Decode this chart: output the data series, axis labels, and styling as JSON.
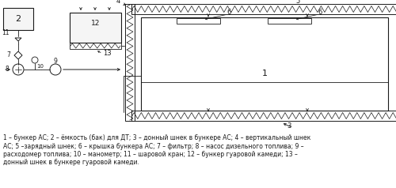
{
  "background_color": "#ffffff",
  "line_color": "#1a1a1a",
  "fig_width": 5.0,
  "fig_height": 2.38,
  "dpi": 100,
  "caption_line1": "1 – бункер АС; 2 – ёмкость (бак) для ДТ; 3 – донный шнек в бункере АС; 4 – вертикальный шнек",
  "caption_line2": "АС; 5 –зарядный шнек; 6 – крышка бункера АС; 7 – фильтр; 8 – насос дизельного топлива; 9 –",
  "caption_line3": "расходомер топлива; 10 – манометр; 11 – шаровой кран; 12 – бункер гуаровой камеди; 13 –",
  "caption_line4": "донный шнек в бункере гуаровой камеди."
}
